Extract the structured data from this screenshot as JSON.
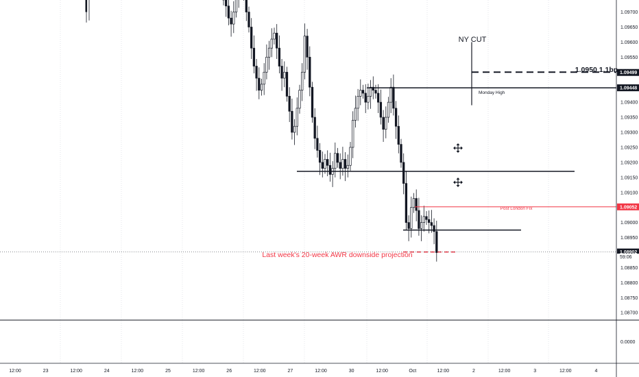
{
  "chart_data": {
    "type": "candlestick",
    "instrument_timeframe": "",
    "price_axis": {
      "ticks": [
        "1.09700",
        "1.09650",
        "1.09600",
        "1.09550",
        "1.09500",
        "1.09400",
        "1.09350",
        "1.09300",
        "1.09250",
        "1.09200",
        "1.09150",
        "1.09100",
        "1.09000",
        "1.08950",
        "1.08850",
        "1.08800",
        "1.08750",
        "1.08700"
      ],
      "ylim": [
        1.0868,
        1.0974
      ],
      "tags": [
        {
          "label": "1.09499",
          "value": 1.09499,
          "color": "#131722"
        },
        {
          "label": "1.09448",
          "value": 1.09448,
          "color": "#131722"
        },
        {
          "label": "1.09052",
          "value": 1.09052,
          "color": "#f23645"
        },
        {
          "label": "1.08902",
          "value": 1.08902,
          "color": "#131722"
        }
      ],
      "countdown": "59:06"
    },
    "indicator_axis": {
      "ticks": [
        "0.0000"
      ]
    },
    "time_axis": {
      "ticks": [
        "12:00",
        "23",
        "12:00",
        "24",
        "12:00",
        "25",
        "12:00",
        "26",
        "12:00",
        "27",
        "12:00",
        "30",
        "12:00",
        "Oct",
        "12:00",
        "2",
        "12:00",
        "3",
        "12:00",
        "4"
      ]
    },
    "annotations": {
      "ny_cut": "NY CUT",
      "level_label": "1.0950 1.1bn",
      "monday_high": "Monday High",
      "post_london_fix": "Post London Fix",
      "awr_projection": "Last week's 20-week AWR downside projection"
    },
    "levels": {
      "option_expiry": 1.095,
      "monday_high": 1.09448,
      "mid_support": 1.0917,
      "post_london_fix": 1.09052,
      "short_line": 1.08975,
      "awr_projection": 1.08902
    },
    "candles_close": [
      1.0974,
      1.0972,
      1.0968,
      1.0966,
      1.097,
      1.0975,
      1.0985,
      1.099,
      1.0978,
      1.097,
      1.0965,
      1.0958,
      1.0952,
      1.0948,
      1.0944,
      1.0946,
      1.095,
      1.0955,
      1.0958,
      1.0961,
      1.0963,
      1.0958,
      1.0952,
      1.0948,
      1.095,
      1.0942,
      1.0937,
      1.093,
      1.0932,
      1.0938,
      1.0944,
      1.095,
      1.0962,
      1.0955,
      1.0945,
      1.0935,
      1.0928,
      1.0924,
      1.092,
      1.0918,
      1.0921,
      1.0919,
      1.0916,
      1.0918,
      1.0923,
      1.092,
      1.0918,
      1.0921,
      1.0918,
      1.0919,
      1.0925,
      1.0934,
      1.0938,
      1.0942,
      1.0944,
      1.0943,
      1.094,
      1.0942,
      1.0945,
      1.0944,
      1.0943,
      1.094,
      1.0935,
      1.0931,
      1.0935,
      1.094,
      1.0945,
      1.0938,
      1.0932,
      1.0926,
      1.092,
      1.0913,
      1.09,
      1.0898,
      1.0905,
      1.0908,
      1.0904,
      1.0898,
      1.09,
      1.0902,
      1.0901,
      1.09,
      1.0899,
      1.0897,
      1.089
    ]
  }
}
